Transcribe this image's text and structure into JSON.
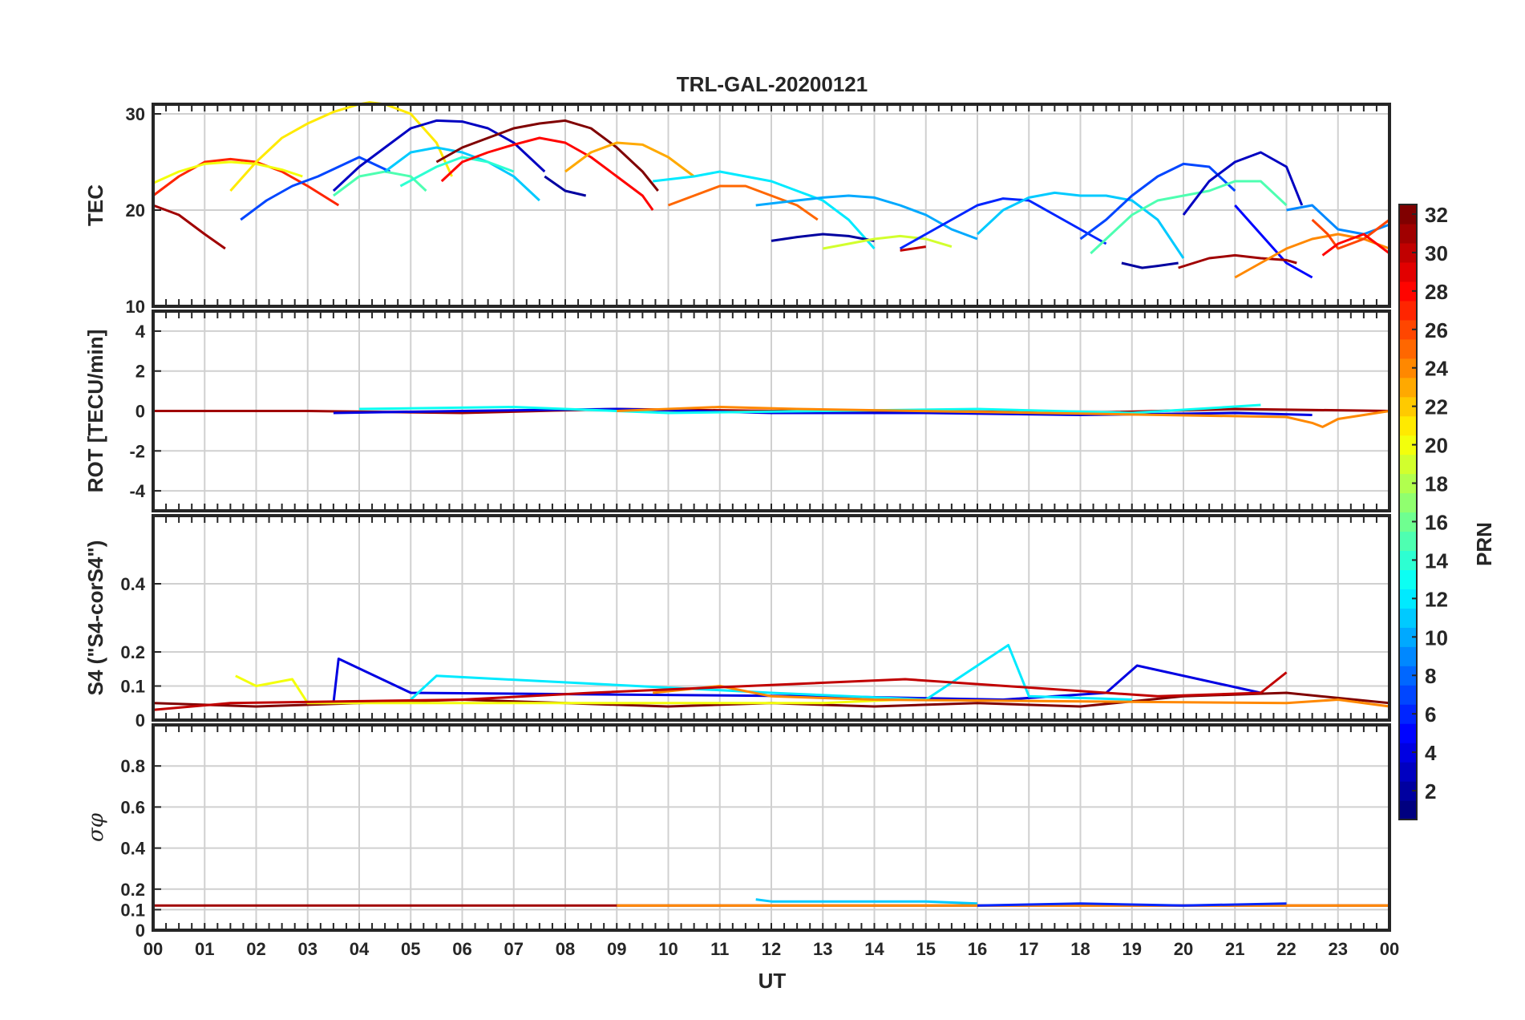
{
  "chart_data": {
    "type": "line",
    "title": "TRL-GAL-20200121",
    "xlabel": "UT",
    "x_tick_labels": [
      "00",
      "01",
      "02",
      "03",
      "04",
      "05",
      "06",
      "07",
      "08",
      "09",
      "10",
      "11",
      "12",
      "13",
      "14",
      "15",
      "16",
      "17",
      "18",
      "19",
      "20",
      "21",
      "22",
      "23",
      "00"
    ],
    "xlim": [
      0,
      24
    ],
    "grid": true,
    "colorbar": {
      "label": "PRN",
      "range": [
        1,
        32
      ],
      "ticks": [
        "2",
        "4",
        "6",
        "8",
        "10",
        "12",
        "14",
        "16",
        "18",
        "20",
        "22",
        "24",
        "26",
        "28",
        "30",
        "32"
      ],
      "colormap": "jet"
    },
    "panels": [
      {
        "ylabel": "TEC",
        "ylim": [
          10,
          31
        ],
        "y_ticks": [
          "10",
          "20",
          "30"
        ],
        "series": [
          {
            "prn": 31,
            "x": [
              0.0,
              0.5,
              1.0,
              1.4
            ],
            "y": [
              20.5,
              19.5,
              17.5,
              16.0
            ]
          },
          {
            "prn": 27,
            "x": [
              0.0,
              0.5,
              1.0,
              1.5,
              2.0,
              2.5,
              3.0,
              3.6
            ],
            "y": [
              21.5,
              23.5,
              25.0,
              25.3,
              25.0,
              24.0,
              22.5,
              20.5
            ]
          },
          {
            "prn": 20,
            "x": [
              0.0,
              0.5,
              1.0,
              1.5,
              2.0,
              2.5,
              2.9
            ],
            "y": [
              22.8,
              24.0,
              24.8,
              25.0,
              24.8,
              24.2,
              23.5
            ]
          },
          {
            "prn": 21,
            "x": [
              1.5,
              2.0,
              2.5,
              3.0,
              3.5,
              4.0,
              4.2,
              4.5,
              5.0,
              5.5,
              5.8
            ],
            "y": [
              22.0,
              25.0,
              27.5,
              29.0,
              30.2,
              31.0,
              31.2,
              31.0,
              30.0,
              27.0,
              23.5
            ]
          },
          {
            "prn": 7,
            "x": [
              1.7,
              2.2,
              2.7,
              3.2,
              3.6,
              4.0,
              4.6
            ],
            "y": [
              19.0,
              21.0,
              22.5,
              23.5,
              24.5,
              25.5,
              24.0
            ]
          },
          {
            "prn": 3,
            "x": [
              3.5,
              4.0,
              4.5,
              5.0,
              5.5,
              6.0,
              6.5,
              7.0,
              7.6
            ],
            "y": [
              22.0,
              24.5,
              26.5,
              28.5,
              29.3,
              29.2,
              28.5,
              27.0,
              24.0
            ]
          },
          {
            "prn": 2,
            "x": [
              7.6,
              8.0,
              8.4
            ],
            "y": [
              23.5,
              22.0,
              21.5
            ]
          },
          {
            "prn": 15,
            "x": [
              3.5,
              4.0,
              4.5,
              5.0,
              5.3
            ],
            "y": [
              21.5,
              23.5,
              24.0,
              23.5,
              22.0
            ]
          },
          {
            "prn": 11,
            "x": [
              4.5,
              5.0,
              5.5,
              6.0,
              6.5,
              7.0,
              7.5
            ],
            "y": [
              24.0,
              26.0,
              26.5,
              26.0,
              25.0,
              23.5,
              21.0
            ]
          },
          {
            "prn": 14,
            "x": [
              4.8,
              5.5,
              6.0,
              6.5,
              7.0
            ],
            "y": [
              22.5,
              24.5,
              25.5,
              25.0,
              24.0
            ]
          },
          {
            "prn": 32,
            "x": [
              5.5,
              6.0,
              6.5,
              7.0,
              7.5,
              8.0,
              8.5,
              9.0,
              9.5,
              9.8
            ],
            "y": [
              25.0,
              26.5,
              27.5,
              28.5,
              29.0,
              29.3,
              28.5,
              26.5,
              24.0,
              22.0
            ]
          },
          {
            "prn": 28,
            "x": [
              5.6,
              6.0,
              6.5,
              7.0,
              7.5,
              8.0,
              8.5,
              9.0,
              9.5,
              9.7
            ],
            "y": [
              23.0,
              25.0,
              26.0,
              26.8,
              27.5,
              27.0,
              25.5,
              23.5,
              21.5,
              20.0
            ]
          },
          {
            "prn": 23,
            "x": [
              8.0,
              8.5,
              9.0,
              9.5,
              10.0,
              10.5
            ],
            "y": [
              24.0,
              26.0,
              27.0,
              26.8,
              25.5,
              23.5
            ]
          },
          {
            "prn": 12,
            "x": [
              9.7,
              10.5,
              11.0,
              11.5,
              12.0,
              12.5,
              13.0,
              13.5,
              14.0
            ],
            "y": [
              23.0,
              23.5,
              24.0,
              23.5,
              23.0,
              22.0,
              21.0,
              19.0,
              16.0
            ]
          },
          {
            "prn": 25,
            "x": [
              10.0,
              10.5,
              11.0,
              11.5,
              12.0,
              12.5,
              12.9
            ],
            "y": [
              20.5,
              21.5,
              22.5,
              22.5,
              21.5,
              20.5,
              19.0
            ]
          },
          {
            "prn": 10,
            "x": [
              11.7,
              12.5,
              13.0,
              13.5,
              14.0,
              14.5,
              15.0,
              15.5,
              16.0
            ],
            "y": [
              20.5,
              21.0,
              21.3,
              21.5,
              21.3,
              20.5,
              19.5,
              18.0,
              17.0
            ]
          },
          {
            "prn": 2,
            "x": [
              12.0,
              12.5,
              13.0,
              13.5,
              14.0
            ],
            "y": [
              16.8,
              17.2,
              17.5,
              17.3,
              16.8
            ]
          },
          {
            "prn": 19,
            "x": [
              13.0,
              13.5,
              14.0,
              14.5,
              15.0,
              15.5
            ],
            "y": [
              16.0,
              16.5,
              17.0,
              17.3,
              17.0,
              16.2
            ]
          },
          {
            "prn": 30,
            "x": [
              14.5,
              15.0
            ],
            "y": [
              15.8,
              16.2
            ]
          },
          {
            "prn": 6,
            "x": [
              14.5,
              15.0,
              15.5,
              16.0,
              16.5,
              17.0,
              17.5,
              18.0,
              18.5
            ],
            "y": [
              16.0,
              17.5,
              19.0,
              20.5,
              21.2,
              21.0,
              19.5,
              18.0,
              16.5
            ]
          },
          {
            "prn": 11,
            "x": [
              16.0,
              16.5,
              17.0,
              17.5,
              18.0,
              18.5,
              19.0,
              19.5,
              20.0
            ],
            "y": [
              17.5,
              20.0,
              21.3,
              21.8,
              21.5,
              21.5,
              21.0,
              19.0,
              15.0
            ]
          },
          {
            "prn": 7,
            "x": [
              18.0,
              18.5,
              19.0,
              19.5,
              20.0,
              20.5,
              21.0
            ],
            "y": [
              17.0,
              19.0,
              21.5,
              23.5,
              24.8,
              24.5,
              22.0
            ]
          },
          {
            "prn": 15,
            "x": [
              18.2,
              18.5,
              19.0,
              19.5,
              20.0,
              20.5,
              21.0,
              21.5,
              22.0
            ],
            "y": [
              15.5,
              17.0,
              19.5,
              21.0,
              21.5,
              22.0,
              23.0,
              23.0,
              20.5
            ]
          },
          {
            "prn": 3,
            "x": [
              20.0,
              20.5,
              21.0,
              21.5,
              22.0,
              22.3
            ],
            "y": [
              19.5,
              23.0,
              25.0,
              26.0,
              24.5,
              20.5
            ]
          },
          {
            "prn": 5,
            "x": [
              21.0,
              21.5,
              22.0,
              22.5
            ],
            "y": [
              20.5,
              17.5,
              14.5,
              13.0
            ]
          },
          {
            "prn": 2,
            "x": [
              18.8,
              19.2,
              19.5,
              19.9
            ],
            "y": [
              14.5,
              14.0,
              14.2,
              14.5
            ]
          },
          {
            "prn": 31,
            "x": [
              19.9,
              20.5,
              21.0,
              21.5,
              22.0,
              22.2
            ],
            "y": [
              14.0,
              15.0,
              15.3,
              15.0,
              14.8,
              14.5
            ]
          },
          {
            "prn": 24,
            "x": [
              21.0,
              21.5,
              22.0,
              22.5,
              23.0,
              23.5,
              24.0
            ],
            "y": [
              13.0,
              14.5,
              16.0,
              17.0,
              17.5,
              17.0,
              16.0
            ]
          },
          {
            "prn": 9,
            "x": [
              22.0,
              22.5,
              23.0,
              23.5,
              24.0
            ],
            "y": [
              20.0,
              20.5,
              18.0,
              17.5,
              18.5
            ]
          },
          {
            "prn": 26,
            "x": [
              22.5,
              22.8,
              23.0,
              23.5,
              24.0
            ],
            "y": [
              19.0,
              17.5,
              16.0,
              17.0,
              19.0
            ]
          },
          {
            "prn": 28,
            "x": [
              22.7,
              23.0,
              23.5,
              24.0
            ],
            "y": [
              15.3,
              16.5,
              17.5,
              15.5
            ]
          }
        ]
      },
      {
        "ylabel": "ROT [TECU/min]",
        "ylim": [
          -5,
          5
        ],
        "y_ticks": [
          "-4",
          "-2",
          "0",
          "2",
          "4"
        ],
        "series": [
          {
            "prn": 31,
            "x": [
              0,
              3,
              6,
              9,
              12,
              15,
              18,
              21,
              24
            ],
            "y": [
              0,
              0,
              -0.1,
              0.1,
              0,
              0,
              -0.1,
              0.1,
              0
            ]
          },
          {
            "prn": 4,
            "x": [
              3.5,
              6,
              9,
              12,
              15,
              18,
              21,
              22.5
            ],
            "y": [
              -0.1,
              0,
              0.1,
              -0.1,
              -0.1,
              -0.2,
              -0.1,
              -0.2
            ]
          },
          {
            "prn": 13,
            "x": [
              4,
              7,
              10,
              13,
              16,
              19,
              21.5
            ],
            "y": [
              0.1,
              0.2,
              -0.1,
              0,
              0.1,
              -0.1,
              0.3
            ]
          },
          {
            "prn": 24,
            "x": [
              9,
              11,
              12.5,
              22,
              22.5,
              22.7,
              23,
              24
            ],
            "y": [
              0,
              0.2,
              0.1,
              -0.3,
              -0.6,
              -0.8,
              -0.4,
              0
            ]
          }
        ]
      },
      {
        "ylabel": "S4 (\"S4-corS4\")",
        "ylim": [
          0,
          0.6
        ],
        "y_ticks": [
          "0",
          "0.1",
          "0.2",
          "0.4"
        ],
        "series": [
          {
            "prn": 32,
            "x": [
              0,
              2,
              4,
              6,
              8,
              10,
              12,
              14,
              16,
              18,
              20,
              22,
              24
            ],
            "y": [
              0.05,
              0.04,
              0.05,
              0.06,
              0.05,
              0.04,
              0.05,
              0.04,
              0.05,
              0.04,
              0.07,
              0.08,
              0.05
            ]
          },
          {
            "prn": 4,
            "x": [
              3.5,
              3.6,
              5,
              13,
              16.5,
              18.5,
              19.1,
              21.5
            ],
            "y": [
              0.05,
              0.18,
              0.08,
              0.07,
              0.06,
              0.08,
              0.16,
              0.08
            ]
          },
          {
            "prn": 12,
            "x": [
              5,
              5.5,
              12,
              15,
              16.6,
              17,
              19
            ],
            "y": [
              0.06,
              0.13,
              0.08,
              0.06,
              0.22,
              0.07,
              0.06
            ]
          },
          {
            "prn": 20,
            "x": [
              1.6,
              2,
              2.7,
              3,
              13,
              14.5
            ],
            "y": [
              0.13,
              0.1,
              0.12,
              0.05,
              0.05,
              0.06
            ]
          },
          {
            "prn": 24,
            "x": [
              9.7,
              11,
              12,
              14,
              22,
              23,
              24
            ],
            "y": [
              0.08,
              0.1,
              0.07,
              0.06,
              0.05,
              0.06,
              0.04
            ]
          },
          {
            "prn": 30,
            "x": [
              0,
              1.5,
              6,
              8.5,
              14.6,
              19.5,
              21.5,
              22
            ],
            "y": [
              0.03,
              0.05,
              0.06,
              0.08,
              0.12,
              0.07,
              0.08,
              0.14
            ]
          }
        ]
      },
      {
        "ylabel": "σφ",
        "ylim": [
          0,
          1
        ],
        "y_ticks": [
          "0",
          "0.1",
          "0.2",
          "0.4",
          "0.6",
          "0.8"
        ],
        "series": [
          {
            "prn": 31,
            "x": [
              0,
              6,
              12,
              18,
              24
            ],
            "y": [
              0.12,
              0.12,
              0.12,
              0.12,
              0.12
            ]
          },
          {
            "prn": 11,
            "x": [
              11.7,
              12,
              13,
              14,
              15,
              16
            ],
            "y": [
              0.15,
              0.14,
              0.14,
              0.14,
              0.14,
              0.13
            ]
          },
          {
            "prn": 24,
            "x": [
              9,
              12,
              18,
              24
            ],
            "y": [
              0.12,
              0.12,
              0.12,
              0.12
            ]
          },
          {
            "prn": 6,
            "x": [
              16,
              18,
              20,
              22
            ],
            "y": [
              0.12,
              0.13,
              0.12,
              0.13
            ]
          }
        ]
      }
    ]
  }
}
